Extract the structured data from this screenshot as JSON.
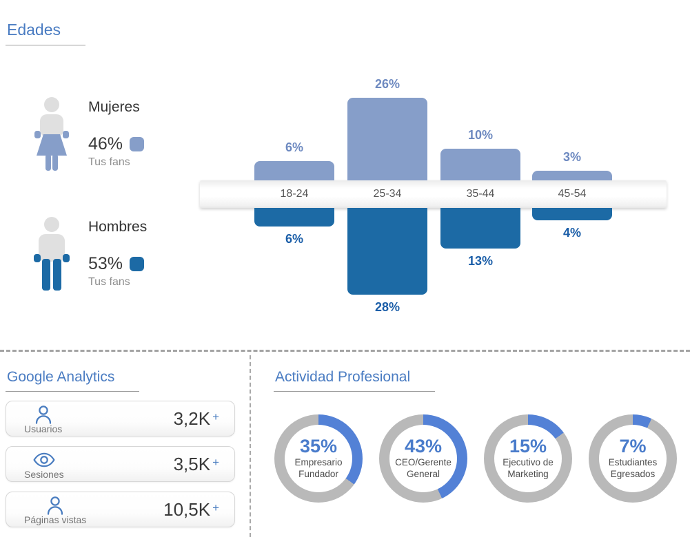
{
  "colors": {
    "title_blue": "#4a7cc2",
    "light_blue": "#869ec9",
    "dark_blue": "#1c6aa5",
    "top_label_blue": "#6d89c0",
    "bottom_label_blue": "#1b5ea8",
    "donut_blue": "#5381d6",
    "donut_gray": "#b9b9b9",
    "plus_blue": "#4a7dc0",
    "text_dark": "#3a3a3a",
    "text_gray": "#8f8f8f"
  },
  "edades": {
    "title": "Edades",
    "genders": [
      {
        "name": "Mujeres",
        "value": "46%",
        "caption": "Tus fans",
        "icon": "woman-icon"
      },
      {
        "name": "Hombres",
        "value": "53%",
        "caption": "Tus fans",
        "icon": "man-icon"
      }
    ]
  },
  "chart_data": [
    {
      "type": "bar",
      "subtype": "butterfly",
      "title": "Edades",
      "categories": [
        "18-24",
        "25-34",
        "35-44",
        "45-54"
      ],
      "series": [
        {
          "name": "Mujeres",
          "values": [
            6,
            26,
            10,
            3
          ]
        },
        {
          "name": "Hombres",
          "values": [
            6,
            28,
            13,
            4
          ]
        }
      ],
      "value_labels": {
        "top": [
          "6%",
          "26%",
          "10%",
          "3%"
        ],
        "bottom": [
          "6%",
          "28%",
          "13%",
          "4%"
        ]
      },
      "unit": "%",
      "legend": [
        {
          "name": "Mujeres",
          "total": "46%"
        },
        {
          "name": "Hombres",
          "total": "53%"
        }
      ],
      "legend_position": "left",
      "grid": false
    },
    {
      "type": "pie",
      "subtype": "donut-multiples",
      "title": "Actividad Profesional",
      "slices": [
        {
          "label": "Empresario Fundador",
          "value": 35
        },
        {
          "label": "CEO/Gerente General",
          "value": 43
        },
        {
          "label": "Ejecutivo de Marketing",
          "value": 15
        },
        {
          "label": "Estudiantes Egresados",
          "value": 7
        }
      ],
      "unit": "%"
    },
    {
      "type": "table",
      "title": "Google Analytics",
      "rows": [
        {
          "label": "Usuarios",
          "value": "3,2K",
          "suffix": "+"
        },
        {
          "label": "Sesiones",
          "value": "3,5K",
          "suffix": "+"
        },
        {
          "label": "Páginas vistas",
          "value": "10,5K",
          "suffix": "+"
        }
      ]
    }
  ],
  "ga": {
    "title": "Google Analytics",
    "cards": [
      {
        "label": "Usuarios",
        "value": "3,2K",
        "plus": "+",
        "icon": "user-icon"
      },
      {
        "label": "Sesiones",
        "value": "3,5K",
        "plus": "+",
        "icon": "eye-icon"
      },
      {
        "label": "Páginas vistas",
        "value": "10,5K",
        "plus": "+",
        "icon": "user-icon"
      }
    ]
  },
  "actividad": {
    "title": "Actividad Profesional",
    "items": [
      {
        "pct": "35%",
        "value": 35,
        "line1": "Empresario",
        "line2": "Fundador"
      },
      {
        "pct": "43%",
        "value": 43,
        "line1": "CEO/Gerente",
        "line2": "General"
      },
      {
        "pct": "15%",
        "value": 15,
        "line1": "Ejecutivo de",
        "line2": "Marketing"
      },
      {
        "pct": "7%",
        "value": 7,
        "line1": "Estudiantes",
        "line2": "Egresados"
      }
    ]
  }
}
